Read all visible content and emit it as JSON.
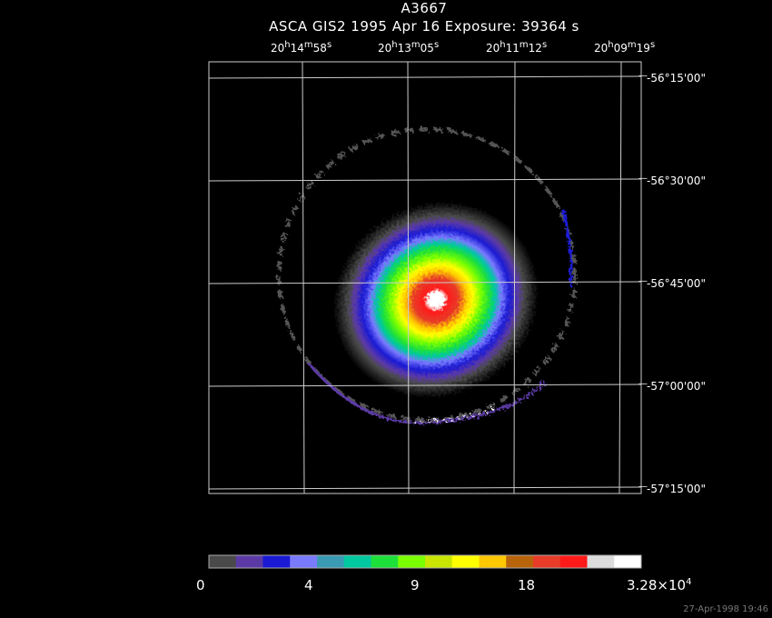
{
  "header": {
    "title": "A3667",
    "subtitle": "ASCA GIS2   1995 Apr 16    Exposure: 39364 s"
  },
  "ra_labels": [
    {
      "h": "20",
      "m": "14",
      "s": "58"
    },
    {
      "h": "20",
      "m": "13",
      "s": "05"
    },
    {
      "h": "20",
      "m": "11",
      "s": "12"
    },
    {
      "h": "20",
      "m": "09",
      "s": "19"
    }
  ],
  "dec_labels": [
    "-56°15'00\"",
    "-56°30'00\"",
    "-56°45'00\"",
    "-57°00'00\"",
    "-57°15'00\""
  ],
  "colorbar": {
    "colors": [
      "#4a4a4a",
      "#5c3aa6",
      "#1a1ad4",
      "#7a7aff",
      "#3a9ab4",
      "#00c8a0",
      "#1ee03a",
      "#7aff00",
      "#c8e600",
      "#ffff00",
      "#ffc800",
      "#b8640a",
      "#e63c28",
      "#ff1a1a",
      "#dcdcdc",
      "#ffffff"
    ],
    "labels": [
      "0",
      "4",
      "9",
      "18",
      "3.28×10"
    ],
    "exponent": "4"
  },
  "timestamp": "27-Apr-1998 19:46"
}
